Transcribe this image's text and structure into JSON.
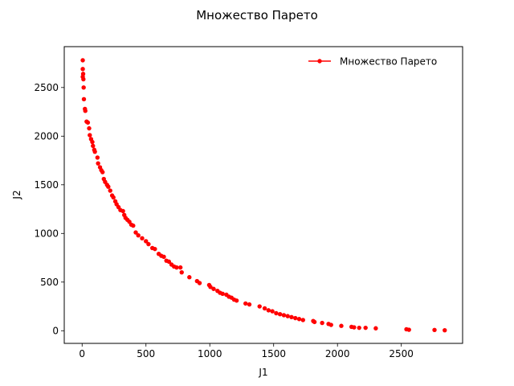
{
  "chart_data": {
    "type": "scatter",
    "title": "Множество Парето",
    "xlabel": "J1",
    "ylabel": "J2",
    "xlim": [
      -140,
      2980
    ],
    "ylim": [
      -130,
      2920
    ],
    "xticks": [
      0,
      500,
      1000,
      1500,
      2000,
      2500
    ],
    "yticks": [
      0,
      500,
      1000,
      1500,
      2000,
      2500
    ],
    "xtick_labels": [
      "0",
      "500",
      "1000",
      "1500",
      "2000",
      "2500"
    ],
    "ytick_labels": [
      "0",
      "500",
      "1000",
      "1500",
      "2000",
      "2500"
    ],
    "legend": {
      "label": "Множество Парето",
      "position": "top-right",
      "frame": false
    },
    "grid": false,
    "series": [
      {
        "name": "Множество Парето",
        "color": "#ff0000",
        "marker": "dot",
        "points": [
          [
            5,
            2780
          ],
          [
            5,
            2690
          ],
          [
            8,
            2640
          ],
          [
            5,
            2610
          ],
          [
            10,
            2585
          ],
          [
            12,
            2500
          ],
          [
            14,
            2380
          ],
          [
            22,
            2280
          ],
          [
            25,
            2260
          ],
          [
            35,
            2150
          ],
          [
            45,
            2140
          ],
          [
            55,
            2080
          ],
          [
            60,
            2010
          ],
          [
            70,
            1970
          ],
          [
            80,
            1940
          ],
          [
            85,
            1900
          ],
          [
            95,
            1860
          ],
          [
            100,
            1840
          ],
          [
            120,
            1780
          ],
          [
            125,
            1720
          ],
          [
            140,
            1680
          ],
          [
            150,
            1650
          ],
          [
            160,
            1630
          ],
          [
            170,
            1560
          ],
          [
            180,
            1530
          ],
          [
            195,
            1500
          ],
          [
            205,
            1480
          ],
          [
            220,
            1440
          ],
          [
            235,
            1390
          ],
          [
            245,
            1370
          ],
          [
            260,
            1330
          ],
          [
            270,
            1300
          ],
          [
            285,
            1270
          ],
          [
            300,
            1240
          ],
          [
            320,
            1230
          ],
          [
            330,
            1190
          ],
          [
            340,
            1160
          ],
          [
            355,
            1140
          ],
          [
            370,
            1120
          ],
          [
            385,
            1090
          ],
          [
            400,
            1080
          ],
          [
            420,
            1010
          ],
          [
            440,
            980
          ],
          [
            470,
            950
          ],
          [
            500,
            920
          ],
          [
            520,
            890
          ],
          [
            550,
            850
          ],
          [
            570,
            840
          ],
          [
            600,
            790
          ],
          [
            620,
            770
          ],
          [
            640,
            760
          ],
          [
            660,
            720
          ],
          [
            680,
            710
          ],
          [
            700,
            680
          ],
          [
            720,
            660
          ],
          [
            740,
            650
          ],
          [
            770,
            650
          ],
          [
            780,
            600
          ],
          [
            840,
            550
          ],
          [
            900,
            510
          ],
          [
            920,
            490
          ],
          [
            995,
            470
          ],
          [
            1005,
            450
          ],
          [
            1030,
            430
          ],
          [
            1060,
            410
          ],
          [
            1080,
            390
          ],
          [
            1100,
            380
          ],
          [
            1130,
            370
          ],
          [
            1150,
            350
          ],
          [
            1170,
            340
          ],
          [
            1190,
            320
          ],
          [
            1210,
            310
          ],
          [
            1280,
            280
          ],
          [
            1310,
            270
          ],
          [
            1390,
            250
          ],
          [
            1430,
            230
          ],
          [
            1460,
            210
          ],
          [
            1490,
            200
          ],
          [
            1520,
            180
          ],
          [
            1550,
            170
          ],
          [
            1580,
            160
          ],
          [
            1610,
            150
          ],
          [
            1640,
            140
          ],
          [
            1670,
            130
          ],
          [
            1700,
            120
          ],
          [
            1730,
            110
          ],
          [
            1810,
            100
          ],
          [
            1820,
            90
          ],
          [
            1880,
            80
          ],
          [
            1930,
            70
          ],
          [
            1950,
            60
          ],
          [
            2030,
            50
          ],
          [
            2110,
            40
          ],
          [
            2130,
            35
          ],
          [
            2170,
            30
          ],
          [
            2220,
            30
          ],
          [
            2300,
            25
          ],
          [
            2540,
            15
          ],
          [
            2560,
            10
          ],
          [
            2760,
            8
          ],
          [
            2840,
            5
          ]
        ]
      }
    ]
  }
}
